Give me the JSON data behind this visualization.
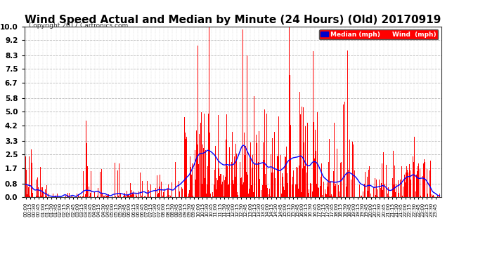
{
  "title": "Wind Speed Actual and Median by Minute (24 Hours) (Old) 20170919",
  "copyright": "Copyright 2017 Cartronics.com",
  "legend_median_label": "Median (mph)",
  "legend_wind_label": "Wind  (mph)",
  "legend_median_color": "#0000ff",
  "legend_wind_color": "#ff0000",
  "yticks": [
    0.0,
    0.8,
    1.7,
    2.5,
    3.3,
    4.2,
    5.0,
    5.8,
    6.7,
    7.5,
    8.3,
    9.2,
    10.0
  ],
  "ylim": [
    0.0,
    10.0
  ],
  "background_color": "#ffffff",
  "grid_color": "#aaaaaa",
  "bar_color": "#ff0000",
  "line_color": "#0000ff",
  "title_fontsize": 11,
  "n_minutes": 1440,
  "xlabel_rotation": 90,
  "xtick_interval": 15
}
